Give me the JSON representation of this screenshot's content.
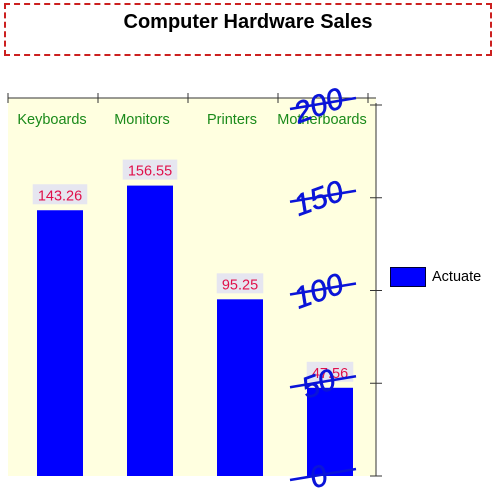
{
  "chart_data": {
    "type": "bar",
    "title": "Computer Hardware Sales",
    "categories": [
      "Keyboards",
      "Monitors",
      "Printers",
      "Motherboards"
    ],
    "series": [
      {
        "name": "Actuate",
        "values": [
          143.26,
          156.55,
          95.25,
          47.56
        ]
      }
    ],
    "value_labels": [
      "143.26",
      "156.55",
      "95.25",
      "47.56"
    ],
    "y_ticks": [
      0,
      50,
      100,
      150,
      200
    ],
    "ylim": [
      0,
      200
    ],
    "xlabel": "",
    "ylabel": "",
    "grid": false,
    "legend_position": "right",
    "category_axis_position": "top",
    "value_axis_position": "right"
  },
  "colors": {
    "bar": "#0000ff",
    "plot_background": "#ffffe0",
    "category_label": "#1a8a1a",
    "value_label": "#e0104a",
    "value_label_background": "#e6e6f0",
    "tick_label": "#0a14d8",
    "title_border": "#cc2020"
  }
}
